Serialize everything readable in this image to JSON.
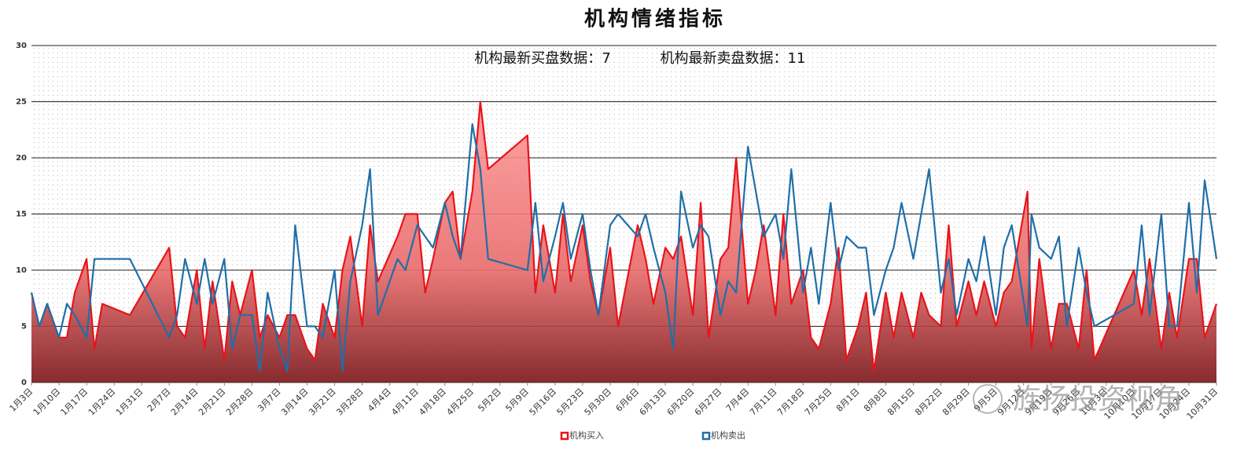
{
  "chart_data": {
    "type": "line",
    "title": "机构情绪指标",
    "annotations": [
      "机构最新买盘数据：7",
      "机构最新卖盘数据：11"
    ],
    "watermark": "旌扬投资视角",
    "x": [
      "1月3日",
      "1月5日",
      "1月7日",
      "1月10日",
      "1月12日",
      "1月14日",
      "1月17日",
      "1月19日",
      "1月21日",
      "1月28日",
      "2月7日",
      "2月9日",
      "2月11日",
      "2月14日",
      "2月16日",
      "2月18日",
      "2月21日",
      "2月23日",
      "2月25日",
      "2月28日",
      "3月2日",
      "3月4日",
      "3月7日",
      "3月9日",
      "3月11日",
      "3月14日",
      "3月16日",
      "3月18日",
      "3月21日",
      "3月23日",
      "3月25日",
      "3月28日",
      "3月30日",
      "4月1日",
      "4月6日",
      "4月8日",
      "4月11日",
      "4月13日",
      "4月15日",
      "4月18日",
      "4月20日",
      "4月22日",
      "4月25日",
      "4月27日",
      "4月29日",
      "5月9日",
      "5月11日",
      "5月13日",
      "5月16日",
      "5月18日",
      "5月20日",
      "5月23日",
      "5月25日",
      "5月27日",
      "5月30日",
      "6月1日",
      "6月6日",
      "6月8日",
      "6月10日",
      "6月13日",
      "6月15日",
      "6月17日",
      "6月20日",
      "6月22日",
      "6月24日",
      "6月27日",
      "6月29日",
      "7月1日",
      "7月4日",
      "7月6日",
      "7月8日",
      "7月11日",
      "7月13日",
      "7月15日",
      "7月18日",
      "7月20日",
      "7月22日",
      "7月25日",
      "7月27日",
      "7月29日",
      "8月1日",
      "8月3日",
      "8月5日",
      "8月8日",
      "8月10日",
      "8月12日",
      "8月15日",
      "8月17日",
      "8月19日",
      "8月22日",
      "8月24日",
      "8月26日",
      "8月29日",
      "8月31日",
      "9月2日",
      "9月5日",
      "9月7日",
      "9月9日",
      "9月13日",
      "9月14日",
      "9月16日",
      "9月19日",
      "9月21日",
      "9月23日",
      "9月26日",
      "9月28日",
      "9月30日",
      "10月10日",
      "10月12日",
      "10月14日",
      "10月17日",
      "10月19日",
      "10月21日",
      "10月24日",
      "10月26日",
      "10月28日",
      "10月31日"
    ],
    "series": [
      {
        "name": "机构买入",
        "color": "#e8141a",
        "area": true,
        "values": [
          8,
          5,
          7,
          4,
          4,
          8,
          11,
          3,
          7,
          6,
          12,
          5,
          4,
          10,
          3,
          9,
          2,
          9,
          6,
          10,
          4,
          6,
          4,
          6,
          6,
          3,
          2,
          7,
          4,
          10,
          13,
          5,
          14,
          9,
          13,
          15,
          15,
          8,
          11,
          16,
          17,
          11,
          17,
          25,
          19,
          22,
          8,
          14,
          8,
          15,
          9,
          14,
          9,
          6,
          12,
          5,
          14,
          11,
          7,
          12,
          11,
          13,
          6,
          16,
          4,
          11,
          12,
          20,
          7,
          10,
          14,
          6,
          15,
          7,
          10,
          4,
          3,
          7,
          12,
          2,
          5,
          8,
          1,
          8,
          4,
          8,
          4,
          8,
          6,
          5,
          14,
          5,
          9,
          6,
          9,
          5,
          8,
          9,
          17,
          3,
          11,
          3,
          7,
          7,
          3,
          10,
          2,
          10,
          6,
          11,
          3,
          8,
          4,
          11,
          11,
          4,
          7
        ]
      },
      {
        "name": "机构卖出",
        "color": "#1f6fa8",
        "area": false,
        "values": [
          8,
          5,
          7,
          4,
          7,
          6,
          4,
          11,
          11,
          11,
          4,
          6,
          11,
          7,
          11,
          7,
          11,
          3,
          6,
          6,
          1,
          8,
          3,
          1,
          14,
          5,
          5,
          4,
          10,
          1,
          9,
          14,
          19,
          6,
          11,
          10,
          14,
          13,
          12,
          16,
          13,
          11,
          23,
          19,
          11,
          10,
          16,
          9,
          13,
          16,
          11,
          15,
          10,
          6,
          14,
          15,
          13,
          15,
          12,
          8,
          3,
          17,
          12,
          14,
          13,
          6,
          9,
          8,
          21,
          17,
          13,
          15,
          11,
          19,
          8,
          12,
          7,
          16,
          10,
          13,
          12,
          12,
          6,
          10,
          12,
          16,
          11,
          15,
          19,
          8,
          11,
          6,
          11,
          9,
          13,
          6,
          12,
          14,
          5,
          15,
          12,
          11,
          13,
          5,
          12,
          8,
          5,
          7,
          14,
          6,
          15,
          5,
          5,
          16,
          8,
          18,
          11
        ]
      }
    ],
    "xticks": [
      "1月3日",
      "1月10日",
      "1月17日",
      "1月24日",
      "1月31日",
      "2月7日",
      "2月14日",
      "2月21日",
      "2月28日",
      "3月7日",
      "3月14日",
      "3月21日",
      "3月28日",
      "4月4日",
      "4月11日",
      "4月18日",
      "4月25日",
      "5月2日",
      "5月9日",
      "5月16日",
      "5月23日",
      "5月30日",
      "6月6日",
      "6月13日",
      "6月20日",
      "6月27日",
      "7月4日",
      "7月11日",
      "7月18日",
      "7月25日",
      "8月1日",
      "8月8日",
      "8月15日",
      "8月22日",
      "8月29日",
      "9月5日",
      "9月12日",
      "9月19日",
      "9月26日",
      "10月3日",
      "10月10日",
      "10月17日",
      "10月24日",
      "10月31日"
    ],
    "ylim": [
      0,
      30
    ],
    "yticks": [
      0,
      5,
      10,
      15,
      20,
      25,
      30
    ],
    "grid": true,
    "legend": "bottom"
  }
}
